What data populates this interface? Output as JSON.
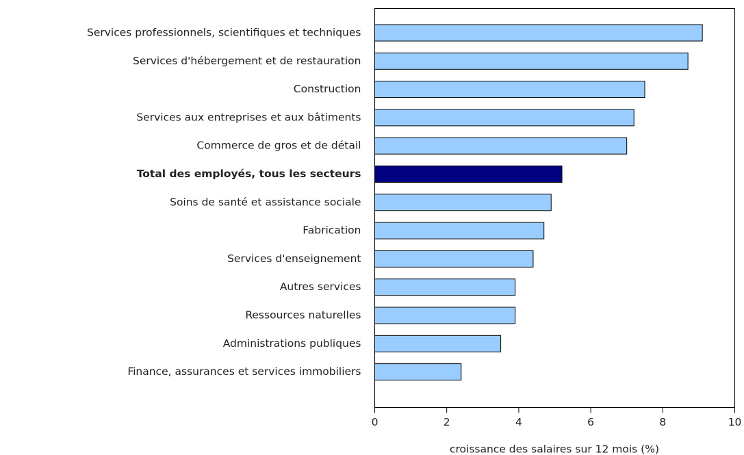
{
  "chart_data": {
    "type": "hbar",
    "categories": [
      "Services professionnels, scientifiques et techniques",
      "Services d'hébergement et de restauration",
      "Construction",
      "Services aux entreprises et aux bâtiments",
      "Commerce de gros et de détail",
      "Total des employés, tous les secteurs",
      "Soins de santé et assistance sociale",
      "Fabrication",
      "Services d'enseignement",
      "Autres services",
      "Ressources naturelles",
      "Administrations publiques",
      "Finance, assurances et services immobiliers"
    ],
    "values": [
      9.1,
      8.7,
      7.5,
      7.2,
      7.0,
      5.2,
      4.9,
      4.7,
      4.4,
      3.9,
      3.9,
      3.5,
      2.4
    ],
    "colors": [
      "#99ccff",
      "#99ccff",
      "#99ccff",
      "#99ccff",
      "#99ccff",
      "#000080",
      "#99ccff",
      "#99ccff",
      "#99ccff",
      "#99ccff",
      "#99ccff",
      "#99ccff",
      "#99ccff"
    ],
    "x_label": "croissance des salaires sur 12 mois (%)",
    "xlim": [
      0,
      10
    ],
    "xticks": [
      0,
      2,
      4,
      6,
      8,
      10
    ],
    "grid": false
  }
}
